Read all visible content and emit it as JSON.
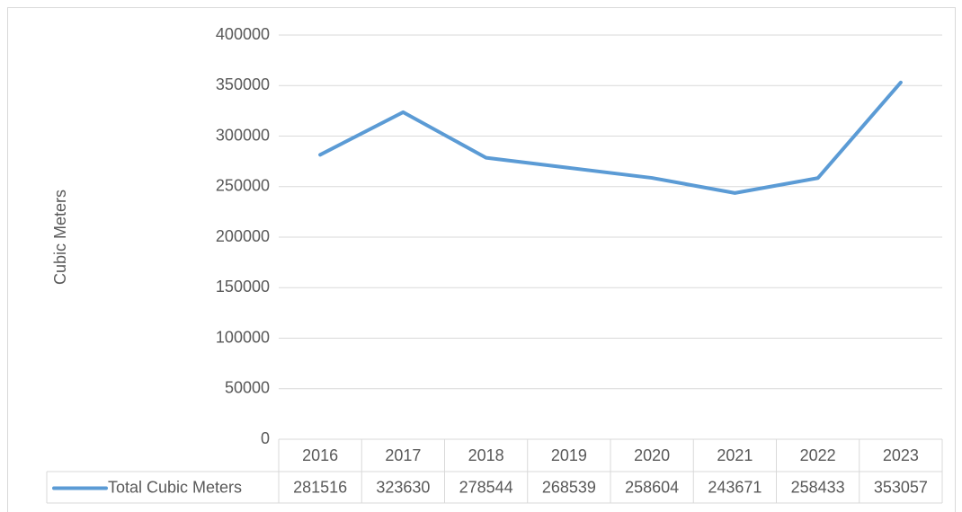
{
  "chart_data": {
    "type": "line",
    "y_label": "Cubic Meters",
    "categories": [
      "2016",
      "2017",
      "2018",
      "2019",
      "2020",
      "2021",
      "2022",
      "2023"
    ],
    "series": [
      {
        "name": "Total Cubic Meters",
        "color": "#5b9bd5",
        "values": [
          281516,
          323630,
          278544,
          268539,
          258604,
          243671,
          258433,
          353057
        ]
      }
    ],
    "ylim": [
      0,
      400000
    ],
    "yticks": [
      0,
      50000,
      100000,
      150000,
      200000,
      250000,
      300000,
      350000,
      400000
    ],
    "grid": true,
    "data_table": true
  }
}
